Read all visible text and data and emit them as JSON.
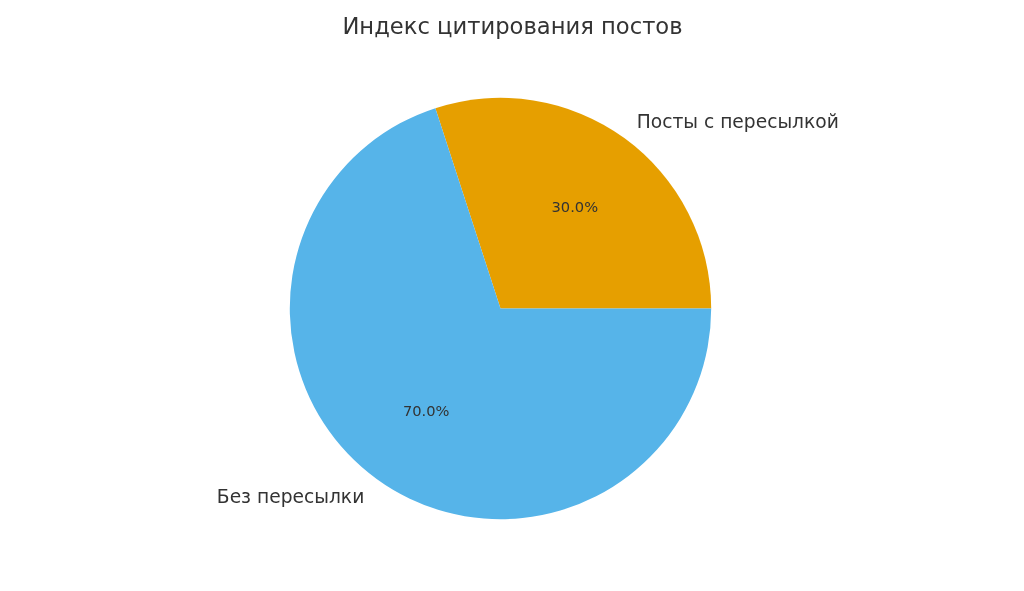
{
  "chart_data": {
    "type": "pie",
    "title": "Индекс цитирования постов",
    "categories": [
      "Посты с пересылкой",
      "Без пересылки"
    ],
    "values": [
      30,
      70
    ],
    "colors": [
      "#e69f00",
      "#56b4e9"
    ],
    "value_labels": [
      "30.0%",
      "70.0%"
    ]
  }
}
